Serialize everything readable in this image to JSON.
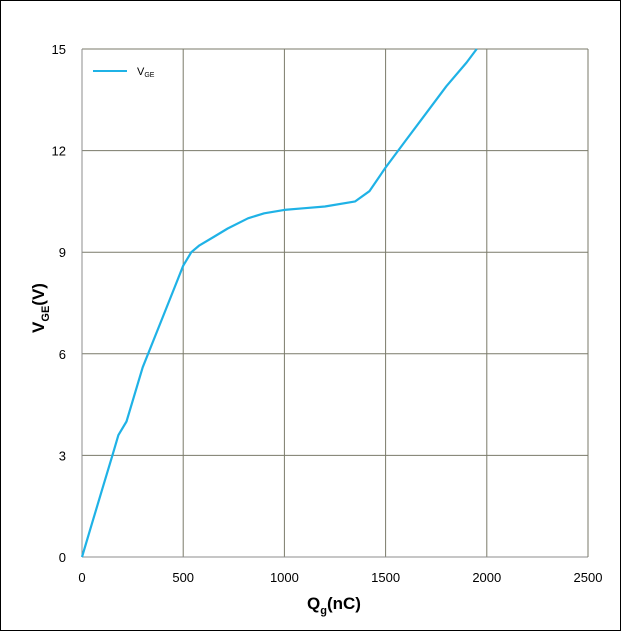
{
  "chart_data": {
    "type": "line",
    "x_ticks": [
      "0",
      "500",
      "1000",
      "1500",
      "2000",
      "2500"
    ],
    "y_ticks": [
      "0",
      "3",
      "6",
      "9",
      "12",
      "15"
    ],
    "xlim": [
      0,
      2500
    ],
    "ylim": [
      0,
      15
    ],
    "xlabel": {
      "main": "Q",
      "sub": "g",
      "tail": "(nC)"
    },
    "ylabel": {
      "main": "V",
      "sub": "GE",
      "tail": "(V)"
    },
    "grid": true,
    "legend_position": "top-left",
    "series": [
      {
        "name": {
          "main": "V",
          "sub": "GE"
        },
        "color": "#1fb2e6",
        "x": [
          0,
          50,
          100,
          150,
          180,
          220,
          300,
          400,
          460,
          500,
          540,
          580,
          650,
          720,
          820,
          900,
          1000,
          1100,
          1200,
          1350,
          1420,
          1500,
          1600,
          1700,
          1800,
          1900,
          1950
        ],
        "y": [
          0,
          1.0,
          2.0,
          3.0,
          3.6,
          4.0,
          5.6,
          7.1,
          8.0,
          8.6,
          9.0,
          9.2,
          9.45,
          9.7,
          10.0,
          10.15,
          10.25,
          10.3,
          10.35,
          10.5,
          10.8,
          11.5,
          12.3,
          13.1,
          13.9,
          14.6,
          15.0
        ]
      }
    ]
  }
}
